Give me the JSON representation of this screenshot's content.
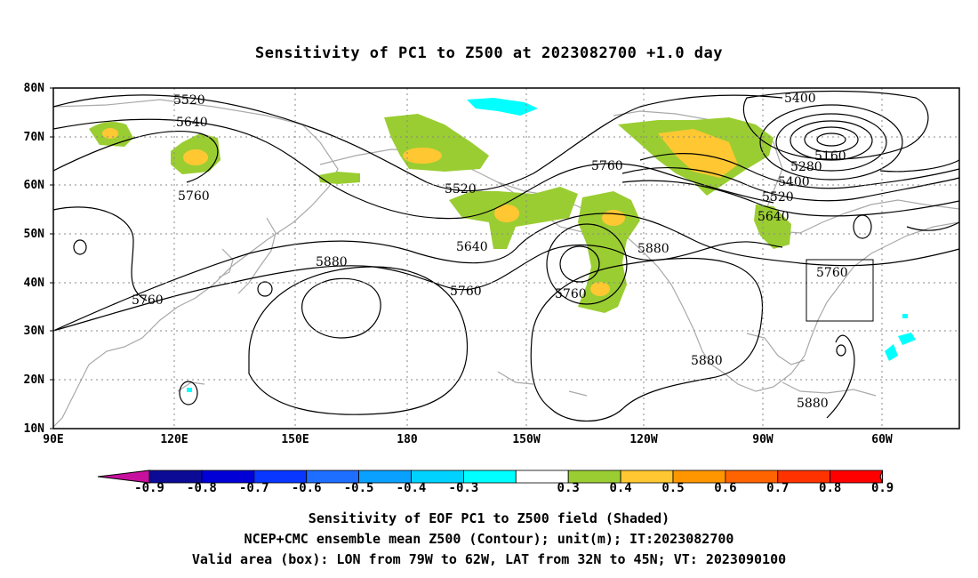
{
  "title": "Sensitivity of PC1 to Z500 at 2023082700 +1.0 day",
  "lat_labels": [
    "80N",
    "70N",
    "60N",
    "50N",
    "40N",
    "30N",
    "20N",
    "10N"
  ],
  "lon_labels": [
    "90E",
    "120E",
    "150E",
    "180",
    "150W",
    "120W",
    "90W",
    "60W"
  ],
  "contour_labels": [
    "5520",
    "5640",
    "5760",
    "5880",
    "5760",
    "5400",
    "5160",
    "5280",
    "5400",
    "5520",
    "5640",
    "5760",
    "5760",
    "5520",
    "5640",
    "5760",
    "5760",
    "5880",
    "5880",
    "5880",
    "5760"
  ],
  "colorbar": {
    "labels": [
      "-0.9",
      "-0.8",
      "-0.7",
      "-0.6",
      "-0.5",
      "-0.4",
      "-0.3",
      "0.3",
      "0.4",
      "0.5",
      "0.6",
      "0.7",
      "0.8",
      "0.9"
    ],
    "colors": [
      "#0b0b96",
      "#0000d7",
      "#0a37ff",
      "#1e6eff",
      "#0aa0ff",
      "#00d2ff",
      "#00ffff",
      "#ffffff",
      "#9acd32",
      "#ffc832",
      "#ff9600",
      "#ff6400",
      "#ff3200",
      "#ff0000"
    ],
    "low_end_color": "#c8109e",
    "high_end_color": "#ffaacc"
  },
  "captions": [
    "Sensitivity of EOF PC1 to Z500 field (Shaded)",
    "NCEP+CMC ensemble mean Z500 (Contour); unit(m); IT:2023082700",
    "Valid area (box): LON from 79W to 62W, LAT from 32N to 45N; VT: 2023090100"
  ],
  "colors": {
    "land_outline": "#a9a9a9",
    "contour": "#000000",
    "positive_low": "#9acd32",
    "positive_mid": "#ffc832",
    "negative": "#00ffff"
  }
}
